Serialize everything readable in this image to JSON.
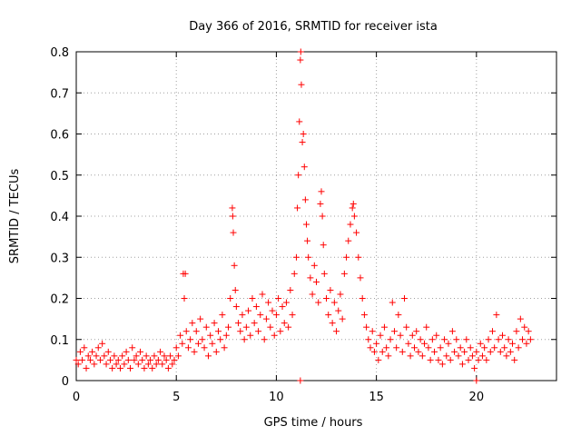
{
  "chart_data": {
    "type": "scatter",
    "title": "Day 366 of 2016, SRMTID for receiver ista",
    "xlabel": "GPS time / hours",
    "ylabel": "SRMTID / TECUs",
    "xlim": [
      0,
      24
    ],
    "ylim": [
      0,
      0.8
    ],
    "x_ticks": [
      0,
      5,
      10,
      15,
      20
    ],
    "y_ticks": [
      0,
      0.1,
      0.2,
      0.3,
      0.4,
      0.5,
      0.6,
      0.7,
      0.8
    ],
    "x_tick_labels": [
      "0",
      "5",
      "10",
      "15",
      "20"
    ],
    "y_tick_labels": [
      "0",
      "0.1",
      "0.2",
      "0.3",
      "0.4",
      "0.5",
      "0.6",
      "0.7",
      "0.8"
    ],
    "grid": true,
    "marker": "+",
    "color": "#ff0000",
    "series": [
      {
        "name": "SRMTID",
        "points": [
          [
            0.0,
            0.05
          ],
          [
            0.1,
            0.04
          ],
          [
            0.2,
            0.07
          ],
          [
            0.3,
            0.05
          ],
          [
            0.4,
            0.08
          ],
          [
            0.5,
            0.03
          ],
          [
            0.6,
            0.06
          ],
          [
            0.7,
            0.05
          ],
          [
            0.8,
            0.07
          ],
          [
            0.9,
            0.04
          ],
          [
            1.0,
            0.06
          ],
          [
            1.1,
            0.08
          ],
          [
            1.2,
            0.05
          ],
          [
            1.3,
            0.09
          ],
          [
            1.4,
            0.06
          ],
          [
            1.5,
            0.04
          ],
          [
            1.6,
            0.07
          ],
          [
            1.7,
            0.05
          ],
          [
            1.8,
            0.03
          ],
          [
            1.9,
            0.06
          ],
          [
            2.0,
            0.04
          ],
          [
            2.1,
            0.05
          ],
          [
            2.2,
            0.03
          ],
          [
            2.3,
            0.06
          ],
          [
            2.4,
            0.04
          ],
          [
            2.5,
            0.07
          ],
          [
            2.6,
            0.05
          ],
          [
            2.7,
            0.03
          ],
          [
            2.8,
            0.08
          ],
          [
            2.9,
            0.05
          ],
          [
            3.0,
            0.06
          ],
          [
            3.1,
            0.04
          ],
          [
            3.2,
            0.07
          ],
          [
            3.3,
            0.05
          ],
          [
            3.4,
            0.03
          ],
          [
            3.5,
            0.06
          ],
          [
            3.6,
            0.04
          ],
          [
            3.7,
            0.05
          ],
          [
            3.8,
            0.03
          ],
          [
            3.9,
            0.06
          ],
          [
            4.0,
            0.04
          ],
          [
            4.1,
            0.05
          ],
          [
            4.2,
            0.07
          ],
          [
            4.3,
            0.04
          ],
          [
            4.4,
            0.06
          ],
          [
            4.5,
            0.05
          ],
          [
            4.6,
            0.03
          ],
          [
            4.7,
            0.06
          ],
          [
            4.8,
            0.04
          ],
          [
            4.9,
            0.05
          ],
          [
            5.0,
            0.08
          ],
          [
            5.1,
            0.06
          ],
          [
            5.2,
            0.11
          ],
          [
            5.3,
            0.09
          ],
          [
            5.35,
            0.26
          ],
          [
            5.4,
            0.2
          ],
          [
            5.45,
            0.26
          ],
          [
            5.5,
            0.12
          ],
          [
            5.6,
            0.08
          ],
          [
            5.7,
            0.1
          ],
          [
            5.8,
            0.14
          ],
          [
            5.9,
            0.07
          ],
          [
            6.0,
            0.12
          ],
          [
            6.1,
            0.09
          ],
          [
            6.2,
            0.15
          ],
          [
            6.3,
            0.1
          ],
          [
            6.4,
            0.08
          ],
          [
            6.5,
            0.13
          ],
          [
            6.6,
            0.06
          ],
          [
            6.7,
            0.11
          ],
          [
            6.8,
            0.09
          ],
          [
            6.9,
            0.14
          ],
          [
            7.0,
            0.07
          ],
          [
            7.1,
            0.12
          ],
          [
            7.2,
            0.1
          ],
          [
            7.3,
            0.16
          ],
          [
            7.4,
            0.08
          ],
          [
            7.5,
            0.11
          ],
          [
            7.6,
            0.13
          ],
          [
            7.7,
            0.2
          ],
          [
            7.8,
            0.42
          ],
          [
            7.82,
            0.4
          ],
          [
            7.85,
            0.36
          ],
          [
            7.9,
            0.28
          ],
          [
            7.95,
            0.22
          ],
          [
            8.0,
            0.18
          ],
          [
            8.1,
            0.14
          ],
          [
            8.2,
            0.12
          ],
          [
            8.3,
            0.16
          ],
          [
            8.4,
            0.1
          ],
          [
            8.5,
            0.13
          ],
          [
            8.6,
            0.17
          ],
          [
            8.7,
            0.11
          ],
          [
            8.8,
            0.2
          ],
          [
            8.9,
            0.14
          ],
          [
            9.0,
            0.18
          ],
          [
            9.1,
            0.12
          ],
          [
            9.2,
            0.16
          ],
          [
            9.3,
            0.21
          ],
          [
            9.4,
            0.1
          ],
          [
            9.5,
            0.15
          ],
          [
            9.6,
            0.19
          ],
          [
            9.7,
            0.13
          ],
          [
            9.8,
            0.17
          ],
          [
            9.9,
            0.11
          ],
          [
            10.0,
            0.16
          ],
          [
            10.1,
            0.2
          ],
          [
            10.2,
            0.12
          ],
          [
            10.3,
            0.18
          ],
          [
            10.4,
            0.14
          ],
          [
            10.5,
            0.19
          ],
          [
            10.6,
            0.13
          ],
          [
            10.7,
            0.22
          ],
          [
            10.8,
            0.16
          ],
          [
            10.9,
            0.26
          ],
          [
            11.0,
            0.3
          ],
          [
            11.05,
            0.42
          ],
          [
            11.1,
            0.5
          ],
          [
            11.15,
            0.63
          ],
          [
            11.2,
            0.78
          ],
          [
            11.22,
            0.8
          ],
          [
            11.25,
            0.72
          ],
          [
            11.3,
            0.58
          ],
          [
            11.35,
            0.6
          ],
          [
            11.4,
            0.52
          ],
          [
            11.45,
            0.44
          ],
          [
            11.5,
            0.38
          ],
          [
            11.55,
            0.34
          ],
          [
            11.6,
            0.3
          ],
          [
            11.7,
            0.25
          ],
          [
            11.8,
            0.21
          ],
          [
            11.9,
            0.28
          ],
          [
            12.0,
            0.24
          ],
          [
            12.1,
            0.19
          ],
          [
            12.2,
            0.43
          ],
          [
            12.25,
            0.46
          ],
          [
            12.3,
            0.4
          ],
          [
            12.35,
            0.33
          ],
          [
            12.4,
            0.26
          ],
          [
            12.5,
            0.2
          ],
          [
            12.6,
            0.16
          ],
          [
            12.7,
            0.22
          ],
          [
            12.8,
            0.14
          ],
          [
            12.9,
            0.19
          ],
          [
            13.0,
            0.12
          ],
          [
            13.1,
            0.17
          ],
          [
            13.2,
            0.21
          ],
          [
            13.3,
            0.15
          ],
          [
            13.4,
            0.26
          ],
          [
            13.5,
            0.3
          ],
          [
            13.6,
            0.34
          ],
          [
            13.7,
            0.38
          ],
          [
            13.8,
            0.42
          ],
          [
            13.85,
            0.43
          ],
          [
            13.9,
            0.4
          ],
          [
            14.0,
            0.36
          ],
          [
            14.1,
            0.3
          ],
          [
            14.2,
            0.25
          ],
          [
            14.3,
            0.2
          ],
          [
            14.4,
            0.16
          ],
          [
            14.5,
            0.13
          ],
          [
            14.6,
            0.1
          ],
          [
            14.7,
            0.08
          ],
          [
            14.8,
            0.12
          ],
          [
            14.9,
            0.07
          ],
          [
            15.0,
            0.09
          ],
          [
            15.1,
            0.05
          ],
          [
            15.2,
            0.11
          ],
          [
            15.3,
            0.07
          ],
          [
            15.4,
            0.13
          ],
          [
            15.5,
            0.08
          ],
          [
            15.6,
            0.06
          ],
          [
            15.7,
            0.1
          ],
          [
            15.8,
            0.19
          ],
          [
            15.9,
            0.12
          ],
          [
            16.0,
            0.08
          ],
          [
            16.1,
            0.16
          ],
          [
            16.2,
            0.11
          ],
          [
            16.3,
            0.07
          ],
          [
            16.4,
            0.2
          ],
          [
            16.5,
            0.13
          ],
          [
            16.6,
            0.09
          ],
          [
            16.7,
            0.06
          ],
          [
            16.8,
            0.11
          ],
          [
            16.9,
            0.08
          ],
          [
            17.0,
            0.12
          ],
          [
            17.1,
            0.07
          ],
          [
            17.2,
            0.1
          ],
          [
            17.3,
            0.06
          ],
          [
            17.4,
            0.09
          ],
          [
            17.5,
            0.13
          ],
          [
            17.6,
            0.08
          ],
          [
            17.7,
            0.05
          ],
          [
            17.8,
            0.1
          ],
          [
            17.9,
            0.07
          ],
          [
            18.0,
            0.11
          ],
          [
            18.1,
            0.05
          ],
          [
            18.2,
            0.08
          ],
          [
            18.3,
            0.04
          ],
          [
            18.4,
            0.1
          ],
          [
            18.5,
            0.06
          ],
          [
            18.6,
            0.09
          ],
          [
            18.7,
            0.05
          ],
          [
            18.8,
            0.12
          ],
          [
            18.9,
            0.07
          ],
          [
            19.0,
            0.1
          ],
          [
            19.1,
            0.06
          ],
          [
            19.2,
            0.08
          ],
          [
            19.3,
            0.04
          ],
          [
            19.4,
            0.07
          ],
          [
            19.5,
            0.1
          ],
          [
            19.6,
            0.05
          ],
          [
            19.7,
            0.08
          ],
          [
            19.8,
            0.06
          ],
          [
            19.9,
            0.03
          ],
          [
            20.0,
            0.07
          ],
          [
            20.1,
            0.05
          ],
          [
            20.2,
            0.09
          ],
          [
            20.3,
            0.06
          ],
          [
            20.4,
            0.08
          ],
          [
            20.5,
            0.05
          ],
          [
            20.6,
            0.1
          ],
          [
            20.7,
            0.07
          ],
          [
            20.8,
            0.12
          ],
          [
            20.9,
            0.08
          ],
          [
            21.0,
            0.16
          ],
          [
            21.1,
            0.1
          ],
          [
            21.2,
            0.07
          ],
          [
            21.3,
            0.11
          ],
          [
            21.4,
            0.08
          ],
          [
            21.5,
            0.06
          ],
          [
            21.6,
            0.1
          ],
          [
            21.7,
            0.07
          ],
          [
            21.8,
            0.09
          ],
          [
            21.9,
            0.05
          ],
          [
            22.0,
            0.12
          ],
          [
            22.1,
            0.08
          ],
          [
            22.2,
            0.15
          ],
          [
            22.3,
            0.1
          ],
          [
            22.4,
            0.13
          ],
          [
            22.5,
            0.09
          ],
          [
            22.6,
            0.12
          ],
          [
            22.7,
            0.1
          ],
          [
            11.2,
            0.0
          ],
          [
            20.0,
            0.0
          ]
        ]
      }
    ]
  }
}
